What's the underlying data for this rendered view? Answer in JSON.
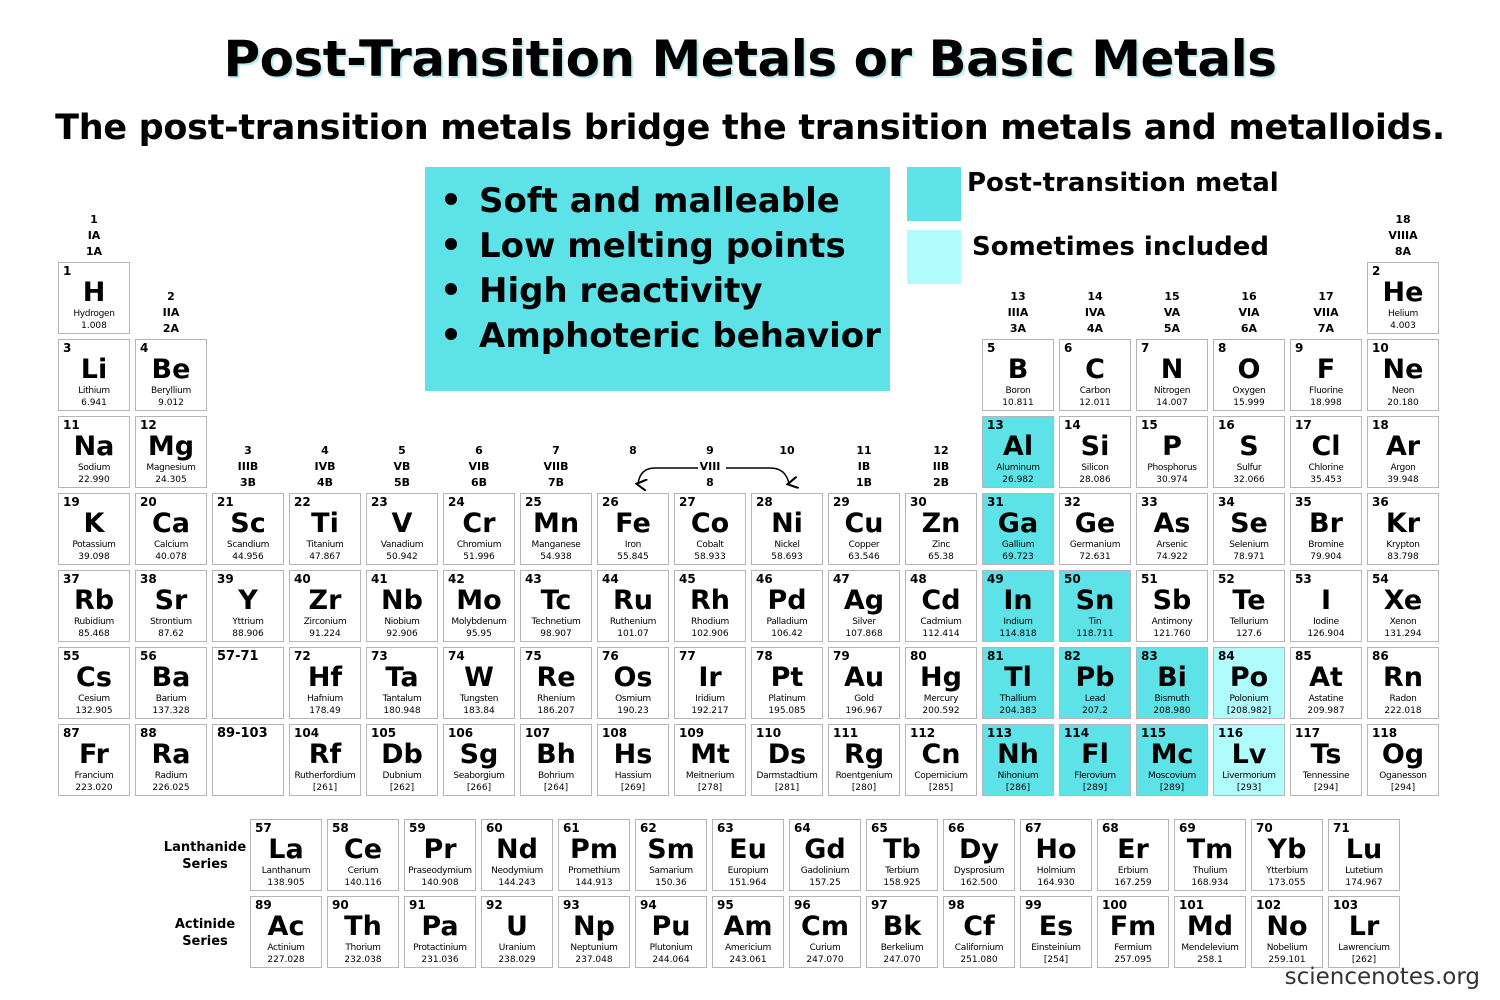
{
  "title": "Post-Transition Metals or Basic Metals",
  "subtitle": "The post-transition metals bridge the transition metals and metalloids.",
  "properties": [
    "Soft and malleable",
    "Low melting points",
    "High reactivity",
    "Amphoteric behavior"
  ],
  "legend": [
    {
      "label": "Post-transition metal",
      "color": "#5de2e8"
    },
    {
      "label": "Sometimes included",
      "color": "#b0fbfb"
    }
  ],
  "colors": {
    "post_transition": "#5de2e8",
    "sometimes": "#b0fbfb",
    "cell_border": "#b5b5b5"
  },
  "group_headers": [
    {
      "col": 1,
      "row": 1,
      "lines": [
        "1",
        "IA",
        "1A"
      ]
    },
    {
      "col": 2,
      "row": 2,
      "lines": [
        "2",
        "IIA",
        "2A"
      ]
    },
    {
      "col": 3,
      "row": 4,
      "lines": [
        "3",
        "IIIB",
        "3B"
      ]
    },
    {
      "col": 4,
      "row": 4,
      "lines": [
        "4",
        "IVB",
        "4B"
      ]
    },
    {
      "col": 5,
      "row": 4,
      "lines": [
        "5",
        "VB",
        "5B"
      ]
    },
    {
      "col": 6,
      "row": 4,
      "lines": [
        "6",
        "VIB",
        "6B"
      ]
    },
    {
      "col": 7,
      "row": 4,
      "lines": [
        "7",
        "VIIB",
        "7B"
      ]
    },
    {
      "col": 8,
      "row": 4,
      "lines": [
        "8",
        "",
        ""
      ]
    },
    {
      "col": 9,
      "row": 4,
      "lines": [
        "9",
        "VIII",
        "8"
      ]
    },
    {
      "col": 10,
      "row": 4,
      "lines": [
        "10",
        "",
        ""
      ]
    },
    {
      "col": 11,
      "row": 4,
      "lines": [
        "11",
        "IB",
        "1B"
      ]
    },
    {
      "col": 12,
      "row": 4,
      "lines": [
        "12",
        "IIB",
        "2B"
      ]
    },
    {
      "col": 13,
      "row": 2,
      "lines": [
        "13",
        "IIIA",
        "3A"
      ]
    },
    {
      "col": 14,
      "row": 2,
      "lines": [
        "14",
        "IVA",
        "4A"
      ]
    },
    {
      "col": 15,
      "row": 2,
      "lines": [
        "15",
        "VA",
        "5A"
      ]
    },
    {
      "col": 16,
      "row": 2,
      "lines": [
        "16",
        "VIA",
        "6A"
      ]
    },
    {
      "col": 17,
      "row": 2,
      "lines": [
        "17",
        "VIIA",
        "7A"
      ]
    },
    {
      "col": 18,
      "row": 1,
      "lines": [
        "18",
        "VIIIA",
        "8A"
      ]
    }
  ],
  "elements": [
    {
      "n": "1",
      "s": "H",
      "name": "Hydrogen",
      "m": "1.008",
      "col": 1,
      "row": 1
    },
    {
      "n": "2",
      "s": "He",
      "name": "Helium",
      "m": "4.003",
      "col": 18,
      "row": 1
    },
    {
      "n": "3",
      "s": "Li",
      "name": "Lithium",
      "m": "6.941",
      "col": 1,
      "row": 2
    },
    {
      "n": "4",
      "s": "Be",
      "name": "Beryllium",
      "m": "9.012",
      "col": 2,
      "row": 2
    },
    {
      "n": "5",
      "s": "B",
      "name": "Boron",
      "m": "10.811",
      "col": 13,
      "row": 2
    },
    {
      "n": "6",
      "s": "C",
      "name": "Carbon",
      "m": "12.011",
      "col": 14,
      "row": 2
    },
    {
      "n": "7",
      "s": "N",
      "name": "Nitrogen",
      "m": "14.007",
      "col": 15,
      "row": 2
    },
    {
      "n": "8",
      "s": "O",
      "name": "Oxygen",
      "m": "15.999",
      "col": 16,
      "row": 2
    },
    {
      "n": "9",
      "s": "F",
      "name": "Fluorine",
      "m": "18.998",
      "col": 17,
      "row": 2
    },
    {
      "n": "10",
      "s": "Ne",
      "name": "Neon",
      "m": "20.180",
      "col": 18,
      "row": 2
    },
    {
      "n": "11",
      "s": "Na",
      "name": "Sodium",
      "m": "22.990",
      "col": 1,
      "row": 3
    },
    {
      "n": "12",
      "s": "Mg",
      "name": "Magnesium",
      "m": "24.305",
      "col": 2,
      "row": 3
    },
    {
      "n": "13",
      "s": "Al",
      "name": "Aluminum",
      "m": "26.982",
      "col": 13,
      "row": 3,
      "cat": "ptm"
    },
    {
      "n": "14",
      "s": "Si",
      "name": "Silicon",
      "m": "28.086",
      "col": 14,
      "row": 3
    },
    {
      "n": "15",
      "s": "P",
      "name": "Phosphorus",
      "m": "30.974",
      "col": 15,
      "row": 3
    },
    {
      "n": "16",
      "s": "S",
      "name": "Sulfur",
      "m": "32.066",
      "col": 16,
      "row": 3
    },
    {
      "n": "17",
      "s": "Cl",
      "name": "Chlorine",
      "m": "35.453",
      "col": 17,
      "row": 3
    },
    {
      "n": "18",
      "s": "Ar",
      "name": "Argon",
      "m": "39.948",
      "col": 18,
      "row": 3
    },
    {
      "n": "19",
      "s": "K",
      "name": "Potassium",
      "m": "39.098",
      "col": 1,
      "row": 4
    },
    {
      "n": "20",
      "s": "Ca",
      "name": "Calcium",
      "m": "40.078",
      "col": 2,
      "row": 4
    },
    {
      "n": "21",
      "s": "Sc",
      "name": "Scandium",
      "m": "44.956",
      "col": 3,
      "row": 4
    },
    {
      "n": "22",
      "s": "Ti",
      "name": "Titanium",
      "m": "47.867",
      "col": 4,
      "row": 4
    },
    {
      "n": "23",
      "s": "V",
      "name": "Vanadium",
      "m": "50.942",
      "col": 5,
      "row": 4
    },
    {
      "n": "24",
      "s": "Cr",
      "name": "Chromium",
      "m": "51.996",
      "col": 6,
      "row": 4
    },
    {
      "n": "25",
      "s": "Mn",
      "name": "Manganese",
      "m": "54.938",
      "col": 7,
      "row": 4
    },
    {
      "n": "26",
      "s": "Fe",
      "name": "Iron",
      "m": "55.845",
      "col": 8,
      "row": 4
    },
    {
      "n": "27",
      "s": "Co",
      "name": "Cobalt",
      "m": "58.933",
      "col": 9,
      "row": 4
    },
    {
      "n": "28",
      "s": "Ni",
      "name": "Nickel",
      "m": "58.693",
      "col": 10,
      "row": 4
    },
    {
      "n": "29",
      "s": "Cu",
      "name": "Copper",
      "m": "63.546",
      "col": 11,
      "row": 4
    },
    {
      "n": "30",
      "s": "Zn",
      "name": "Zinc",
      "m": "65.38",
      "col": 12,
      "row": 4
    },
    {
      "n": "31",
      "s": "Ga",
      "name": "Gallium",
      "m": "69.723",
      "col": 13,
      "row": 4,
      "cat": "ptm"
    },
    {
      "n": "32",
      "s": "Ge",
      "name": "Germanium",
      "m": "72.631",
      "col": 14,
      "row": 4
    },
    {
      "n": "33",
      "s": "As",
      "name": "Arsenic",
      "m": "74.922",
      "col": 15,
      "row": 4
    },
    {
      "n": "34",
      "s": "Se",
      "name": "Selenium",
      "m": "78.971",
      "col": 16,
      "row": 4
    },
    {
      "n": "35",
      "s": "Br",
      "name": "Bromine",
      "m": "79.904",
      "col": 17,
      "row": 4
    },
    {
      "n": "36",
      "s": "Kr",
      "name": "Krypton",
      "m": "83.798",
      "col": 18,
      "row": 4
    },
    {
      "n": "37",
      "s": "Rb",
      "name": "Rubidium",
      "m": "85.468",
      "col": 1,
      "row": 5
    },
    {
      "n": "38",
      "s": "Sr",
      "name": "Strontium",
      "m": "87.62",
      "col": 2,
      "row": 5
    },
    {
      "n": "39",
      "s": "Y",
      "name": "Yttrium",
      "m": "88.906",
      "col": 3,
      "row": 5
    },
    {
      "n": "40",
      "s": "Zr",
      "name": "Zirconium",
      "m": "91.224",
      "col": 4,
      "row": 5
    },
    {
      "n": "41",
      "s": "Nb",
      "name": "Niobium",
      "m": "92.906",
      "col": 5,
      "row": 5
    },
    {
      "n": "42",
      "s": "Mo",
      "name": "Molybdenum",
      "m": "95.95",
      "col": 6,
      "row": 5
    },
    {
      "n": "43",
      "s": "Tc",
      "name": "Technetium",
      "m": "98.907",
      "col": 7,
      "row": 5
    },
    {
      "n": "44",
      "s": "Ru",
      "name": "Ruthenium",
      "m": "101.07",
      "col": 8,
      "row": 5
    },
    {
      "n": "45",
      "s": "Rh",
      "name": "Rhodium",
      "m": "102.906",
      "col": 9,
      "row": 5
    },
    {
      "n": "46",
      "s": "Pd",
      "name": "Palladium",
      "m": "106.42",
      "col": 10,
      "row": 5
    },
    {
      "n": "47",
      "s": "Ag",
      "name": "Silver",
      "m": "107.868",
      "col": 11,
      "row": 5
    },
    {
      "n": "48",
      "s": "Cd",
      "name": "Cadmium",
      "m": "112.414",
      "col": 12,
      "row": 5
    },
    {
      "n": "49",
      "s": "In",
      "name": "Indium",
      "m": "114.818",
      "col": 13,
      "row": 5,
      "cat": "ptm"
    },
    {
      "n": "50",
      "s": "Sn",
      "name": "Tin",
      "m": "118.711",
      "col": 14,
      "row": 5,
      "cat": "ptm"
    },
    {
      "n": "51",
      "s": "Sb",
      "name": "Antimony",
      "m": "121.760",
      "col": 15,
      "row": 5
    },
    {
      "n": "52",
      "s": "Te",
      "name": "Tellurium",
      "m": "127.6",
      "col": 16,
      "row": 5
    },
    {
      "n": "53",
      "s": "I",
      "name": "Iodine",
      "m": "126.904",
      "col": 17,
      "row": 5
    },
    {
      "n": "54",
      "s": "Xe",
      "name": "Xenon",
      "m": "131.294",
      "col": 18,
      "row": 5
    },
    {
      "n": "55",
      "s": "Cs",
      "name": "Cesium",
      "m": "132.905",
      "col": 1,
      "row": 6
    },
    {
      "n": "56",
      "s": "Ba",
      "name": "Barium",
      "m": "137.328",
      "col": 2,
      "row": 6
    },
    {
      "n": "57-71",
      "s": "",
      "name": "",
      "m": "",
      "col": 3,
      "row": 6,
      "cat": "range"
    },
    {
      "n": "72",
      "s": "Hf",
      "name": "Hafnium",
      "m": "178.49",
      "col": 4,
      "row": 6
    },
    {
      "n": "73",
      "s": "Ta",
      "name": "Tantalum",
      "m": "180.948",
      "col": 5,
      "row": 6
    },
    {
      "n": "74",
      "s": "W",
      "name": "Tungsten",
      "m": "183.84",
      "col": 6,
      "row": 6
    },
    {
      "n": "75",
      "s": "Re",
      "name": "Rhenium",
      "m": "186.207",
      "col": 7,
      "row": 6
    },
    {
      "n": "76",
      "s": "Os",
      "name": "Osmium",
      "m": "190.23",
      "col": 8,
      "row": 6
    },
    {
      "n": "77",
      "s": "Ir",
      "name": "Iridium",
      "m": "192.217",
      "col": 9,
      "row": 6
    },
    {
      "n": "78",
      "s": "Pt",
      "name": "Platinum",
      "m": "195.085",
      "col": 10,
      "row": 6
    },
    {
      "n": "79",
      "s": "Au",
      "name": "Gold",
      "m": "196.967",
      "col": 11,
      "row": 6
    },
    {
      "n": "80",
      "s": "Hg",
      "name": "Mercury",
      "m": "200.592",
      "col": 12,
      "row": 6
    },
    {
      "n": "81",
      "s": "Tl",
      "name": "Thallium",
      "m": "204.383",
      "col": 13,
      "row": 6,
      "cat": "ptm"
    },
    {
      "n": "82",
      "s": "Pb",
      "name": "Lead",
      "m": "207.2",
      "col": 14,
      "row": 6,
      "cat": "ptm"
    },
    {
      "n": "83",
      "s": "Bi",
      "name": "Bismuth",
      "m": "208.980",
      "col": 15,
      "row": 6,
      "cat": "ptm"
    },
    {
      "n": "84",
      "s": "Po",
      "name": "Polonium",
      "m": "[208.982]",
      "col": 16,
      "row": 6,
      "cat": "sometimes"
    },
    {
      "n": "85",
      "s": "At",
      "name": "Astatine",
      "m": "209.987",
      "col": 17,
      "row": 6
    },
    {
      "n": "86",
      "s": "Rn",
      "name": "Radon",
      "m": "222.018",
      "col": 18,
      "row": 6
    },
    {
      "n": "87",
      "s": "Fr",
      "name": "Francium",
      "m": "223.020",
      "col": 1,
      "row": 7
    },
    {
      "n": "88",
      "s": "Ra",
      "name": "Radium",
      "m": "226.025",
      "col": 2,
      "row": 7
    },
    {
      "n": "89-103",
      "s": "",
      "name": "",
      "m": "",
      "col": 3,
      "row": 7,
      "cat": "range"
    },
    {
      "n": "104",
      "s": "Rf",
      "name": "Rutherfordium",
      "m": "[261]",
      "col": 4,
      "row": 7
    },
    {
      "n": "105",
      "s": "Db",
      "name": "Dubnium",
      "m": "[262]",
      "col": 5,
      "row": 7
    },
    {
      "n": "106",
      "s": "Sg",
      "name": "Seaborgium",
      "m": "[266]",
      "col": 6,
      "row": 7
    },
    {
      "n": "107",
      "s": "Bh",
      "name": "Bohrium",
      "m": "[264]",
      "col": 7,
      "row": 7
    },
    {
      "n": "108",
      "s": "Hs",
      "name": "Hassium",
      "m": "[269]",
      "col": 8,
      "row": 7
    },
    {
      "n": "109",
      "s": "Mt",
      "name": "Meitnerium",
      "m": "[278]",
      "col": 9,
      "row": 7
    },
    {
      "n": "110",
      "s": "Ds",
      "name": "Darmstadtium",
      "m": "[281]",
      "col": 10,
      "row": 7
    },
    {
      "n": "111",
      "s": "Rg",
      "name": "Roentgenium",
      "m": "[280]",
      "col": 11,
      "row": 7
    },
    {
      "n": "112",
      "s": "Cn",
      "name": "Copernicium",
      "m": "[285]",
      "col": 12,
      "row": 7
    },
    {
      "n": "113",
      "s": "Nh",
      "name": "Nihonium",
      "m": "[286]",
      "col": 13,
      "row": 7,
      "cat": "ptm"
    },
    {
      "n": "114",
      "s": "Fl",
      "name": "Flerovium",
      "m": "[289]",
      "col": 14,
      "row": 7,
      "cat": "ptm"
    },
    {
      "n": "115",
      "s": "Mc",
      "name": "Moscovium",
      "m": "[289]",
      "col": 15,
      "row": 7,
      "cat": "ptm"
    },
    {
      "n": "116",
      "s": "Lv",
      "name": "Livermorium",
      "m": "[293]",
      "col": 16,
      "row": 7,
      "cat": "sometimes"
    },
    {
      "n": "117",
      "s": "Ts",
      "name": "Tennessine",
      "m": "[294]",
      "col": 17,
      "row": 7
    },
    {
      "n": "118",
      "s": "Og",
      "name": "Oganesson",
      "m": "[294]",
      "col": 18,
      "row": 7
    }
  ],
  "series": [
    {
      "label_lines": [
        "Lanthanide",
        "Series"
      ],
      "row": 9,
      "elements": [
        {
          "n": "57",
          "s": "La",
          "name": "Lanthanum",
          "m": "138.905"
        },
        {
          "n": "58",
          "s": "Ce",
          "name": "Cerium",
          "m": "140.116"
        },
        {
          "n": "59",
          "s": "Pr",
          "name": "Praseodymium",
          "m": "140.908"
        },
        {
          "n": "60",
          "s": "Nd",
          "name": "Neodymium",
          "m": "144.243"
        },
        {
          "n": "61",
          "s": "Pm",
          "name": "Promethium",
          "m": "144.913"
        },
        {
          "n": "62",
          "s": "Sm",
          "name": "Samarium",
          "m": "150.36"
        },
        {
          "n": "63",
          "s": "Eu",
          "name": "Europium",
          "m": "151.964"
        },
        {
          "n": "64",
          "s": "Gd",
          "name": "Gadolinium",
          "m": "157.25"
        },
        {
          "n": "65",
          "s": "Tb",
          "name": "Terbium",
          "m": "158.925"
        },
        {
          "n": "66",
          "s": "Dy",
          "name": "Dysprosium",
          "m": "162.500"
        },
        {
          "n": "67",
          "s": "Ho",
          "name": "Holmium",
          "m": "164.930"
        },
        {
          "n": "68",
          "s": "Er",
          "name": "Erbium",
          "m": "167.259"
        },
        {
          "n": "69",
          "s": "Tm",
          "name": "Thulium",
          "m": "168.934"
        },
        {
          "n": "70",
          "s": "Yb",
          "name": "Ytterbium",
          "m": "173.055"
        },
        {
          "n": "71",
          "s": "Lu",
          "name": "Lutetium",
          "m": "174.967"
        }
      ]
    },
    {
      "label_lines": [
        "Actinide",
        "Series"
      ],
      "row": 10,
      "elements": [
        {
          "n": "89",
          "s": "Ac",
          "name": "Actinium",
          "m": "227.028"
        },
        {
          "n": "90",
          "s": "Th",
          "name": "Thorium",
          "m": "232.038"
        },
        {
          "n": "91",
          "s": "Pa",
          "name": "Protactinium",
          "m": "231.036"
        },
        {
          "n": "92",
          "s": "U",
          "name": "Uranium",
          "m": "238.029"
        },
        {
          "n": "93",
          "s": "Np",
          "name": "Neptunium",
          "m": "237.048"
        },
        {
          "n": "94",
          "s": "Pu",
          "name": "Plutonium",
          "m": "244.064"
        },
        {
          "n": "95",
          "s": "Am",
          "name": "Americium",
          "m": "243.061"
        },
        {
          "n": "96",
          "s": "Cm",
          "name": "Curium",
          "m": "247.070"
        },
        {
          "n": "97",
          "s": "Bk",
          "name": "Berkelium",
          "m": "247.070"
        },
        {
          "n": "98",
          "s": "Cf",
          "name": "Californium",
          "m": "251.080"
        },
        {
          "n": "99",
          "s": "Es",
          "name": "Einsteinium",
          "m": "[254]"
        },
        {
          "n": "100",
          "s": "Fm",
          "name": "Fermium",
          "m": "257.095"
        },
        {
          "n": "101",
          "s": "Md",
          "name": "Mendelevium",
          "m": "258.1"
        },
        {
          "n": "102",
          "s": "No",
          "name": "Nobelium",
          "m": "259.101"
        },
        {
          "n": "103",
          "s": "Lr",
          "name": "Lawrencium",
          "m": "[262]"
        }
      ]
    }
  ],
  "credit": "sciencenotes.org"
}
